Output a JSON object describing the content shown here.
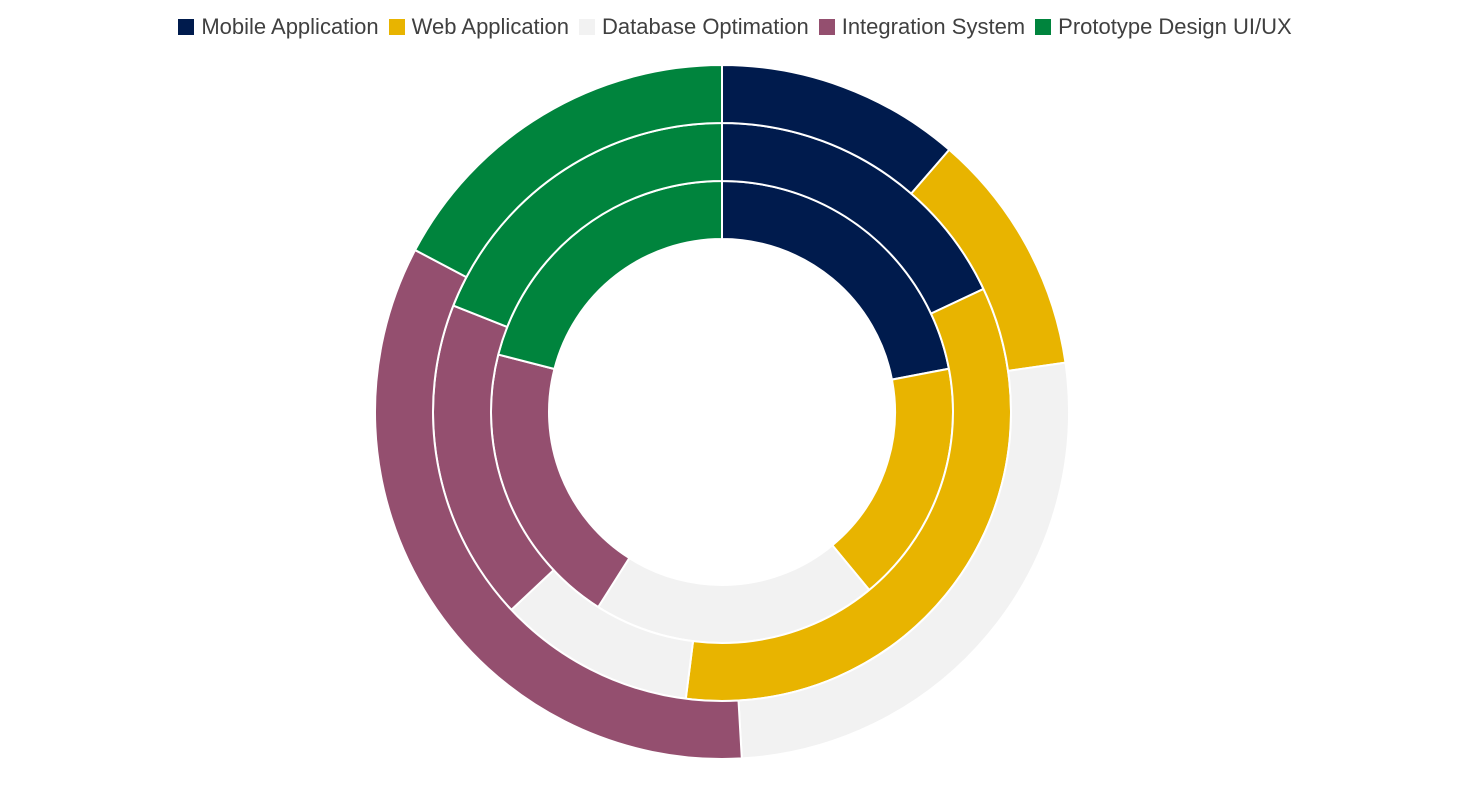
{
  "chart_data": {
    "type": "doughnut",
    "title": "",
    "legend_position": "top",
    "categories": [
      "Mobile Application",
      "Web Application",
      "Database Optimation",
      "Integration System",
      "Prototype Design UI/UX"
    ],
    "colors": [
      "#001b4d",
      "#e8b400",
      "#f2f2f2",
      "#944f6f",
      "#00843d"
    ],
    "series": [
      {
        "ring": "inner",
        "values": [
          22,
          17,
          20,
          20,
          21
        ]
      },
      {
        "ring": "middle",
        "values": [
          18,
          34,
          11,
          18,
          19
        ]
      },
      {
        "ring": "outer",
        "values": [
          12.5,
          12.5,
          29,
          37,
          19
        ]
      }
    ]
  }
}
